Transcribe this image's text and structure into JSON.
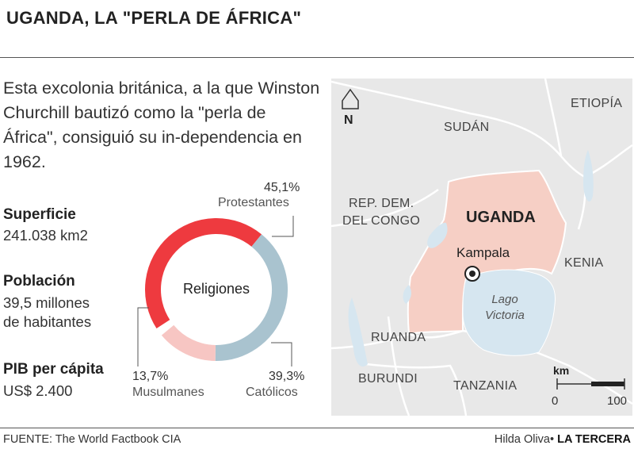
{
  "header": {
    "title": "UGANDA, LA \"PERLA DE ÁFRICA\""
  },
  "intro": {
    "text": "Esta excolonia británica, a la que Winston Churchill bautizó como la \"perla de África\", consiguió su in-dependencia en 1962."
  },
  "stats": {
    "area": {
      "label": "Superficie",
      "value": "241.038 km2"
    },
    "population": {
      "label": "Población",
      "value_line1": "39,5 millones",
      "value_line2": "de habitantes"
    },
    "gdp": {
      "label": "PIB per cápita",
      "value": "US$ 2.400"
    }
  },
  "religions": {
    "center_label": "Religiones",
    "slices": [
      {
        "name": "Protestantes",
        "pct_label": "45,1%",
        "value": 45.1,
        "color": "#ee3a3f"
      },
      {
        "name": "Católicos",
        "pct_label": "39,3%",
        "value": 39.3,
        "color": "#a9c3cf"
      },
      {
        "name": "Musulmanes",
        "pct_label": "13,7%",
        "value": 13.7,
        "color": "#f7c6c3"
      }
    ]
  },
  "map": {
    "north_label": "N",
    "labels": {
      "sudan": "SUDÁN",
      "ethiopia": "ETIOPÍA",
      "drc_line1": "REP. DEM.",
      "drc_line2": "DEL CONGO",
      "uganda": "UGANDA",
      "kampala": "Kampala",
      "kenya": "KENIA",
      "lake_line1": "Lago",
      "lake_line2": "Victoria",
      "rwanda": "RUANDA",
      "burundi": "BURUNDI",
      "tanzania": "TANZANIA"
    },
    "scale": {
      "unit": "km",
      "min": "0",
      "max": "100"
    },
    "colors": {
      "land": "#e8e8e8",
      "uganda": "#f6cfc5",
      "water": "#d6e6f0",
      "border": "#ffffff"
    }
  },
  "footer": {
    "source": "FUENTE: The World Factbook CIA",
    "author": "Hilda Oliva•",
    "publication": "LA TERCERA"
  }
}
